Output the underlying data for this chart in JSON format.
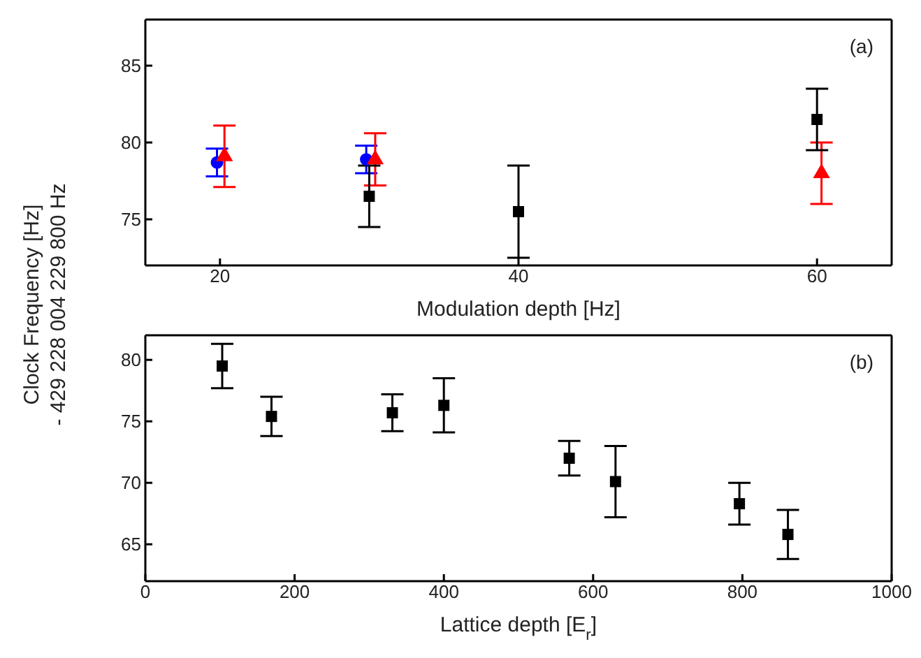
{
  "chart_data": [
    {
      "type": "scatter",
      "xlabel": "Modulation depth [Hz]",
      "ylabel": "Clock Frequency [Hz]\n- 429 228 004 229 800 Hz",
      "xlim": [
        15,
        65
      ],
      "xticks": [
        20,
        40,
        60
      ],
      "ylim": [
        72,
        88
      ],
      "yticks": [
        75,
        80,
        85
      ],
      "annotations": [
        "(a)"
      ],
      "series": [
        {
          "color": "#0000ff",
          "marker": "circle",
          "x": [
            19.8,
            29.8
          ],
          "values": [
            78.7,
            78.9
          ],
          "errors": [
            0.9,
            0.9
          ]
        },
        {
          "color": "#ff0000",
          "marker": "triangle",
          "x": [
            20.3,
            30.4,
            60.3
          ],
          "values": [
            79.1,
            78.9,
            78.0
          ],
          "errors": [
            2,
            1.7,
            2
          ]
        },
        {
          "color": "#000000",
          "marker": "square",
          "x": [
            30,
            40,
            60
          ],
          "values": [
            76.5,
            75.5,
            81.5
          ],
          "errors": [
            2,
            3,
            2
          ]
        }
      ]
    },
    {
      "type": "scatter",
      "xlabel": "Lattice depth [E$_{r}$]",
      "xlim": [
        0,
        1000
      ],
      "xticks": [
        0,
        200,
        400,
        600,
        800,
        1000
      ],
      "ylim": [
        62,
        82
      ],
      "yticks": [
        65,
        70,
        75,
        80
      ],
      "annotations": [
        "(b)"
      ],
      "series": [
        {
          "color": "#000000",
          "marker": "square",
          "x": [
            103,
            169,
            331,
            400,
            568,
            630,
            796,
            861
          ],
          "values": [
            79.5,
            75.4,
            75.7,
            76.3,
            72.0,
            70.1,
            68.3,
            65.8
          ],
          "errors": [
            1.8,
            1.6,
            1.5,
            2.2,
            1.4,
            2.9,
            1.7,
            2
          ]
        }
      ]
    }
  ]
}
